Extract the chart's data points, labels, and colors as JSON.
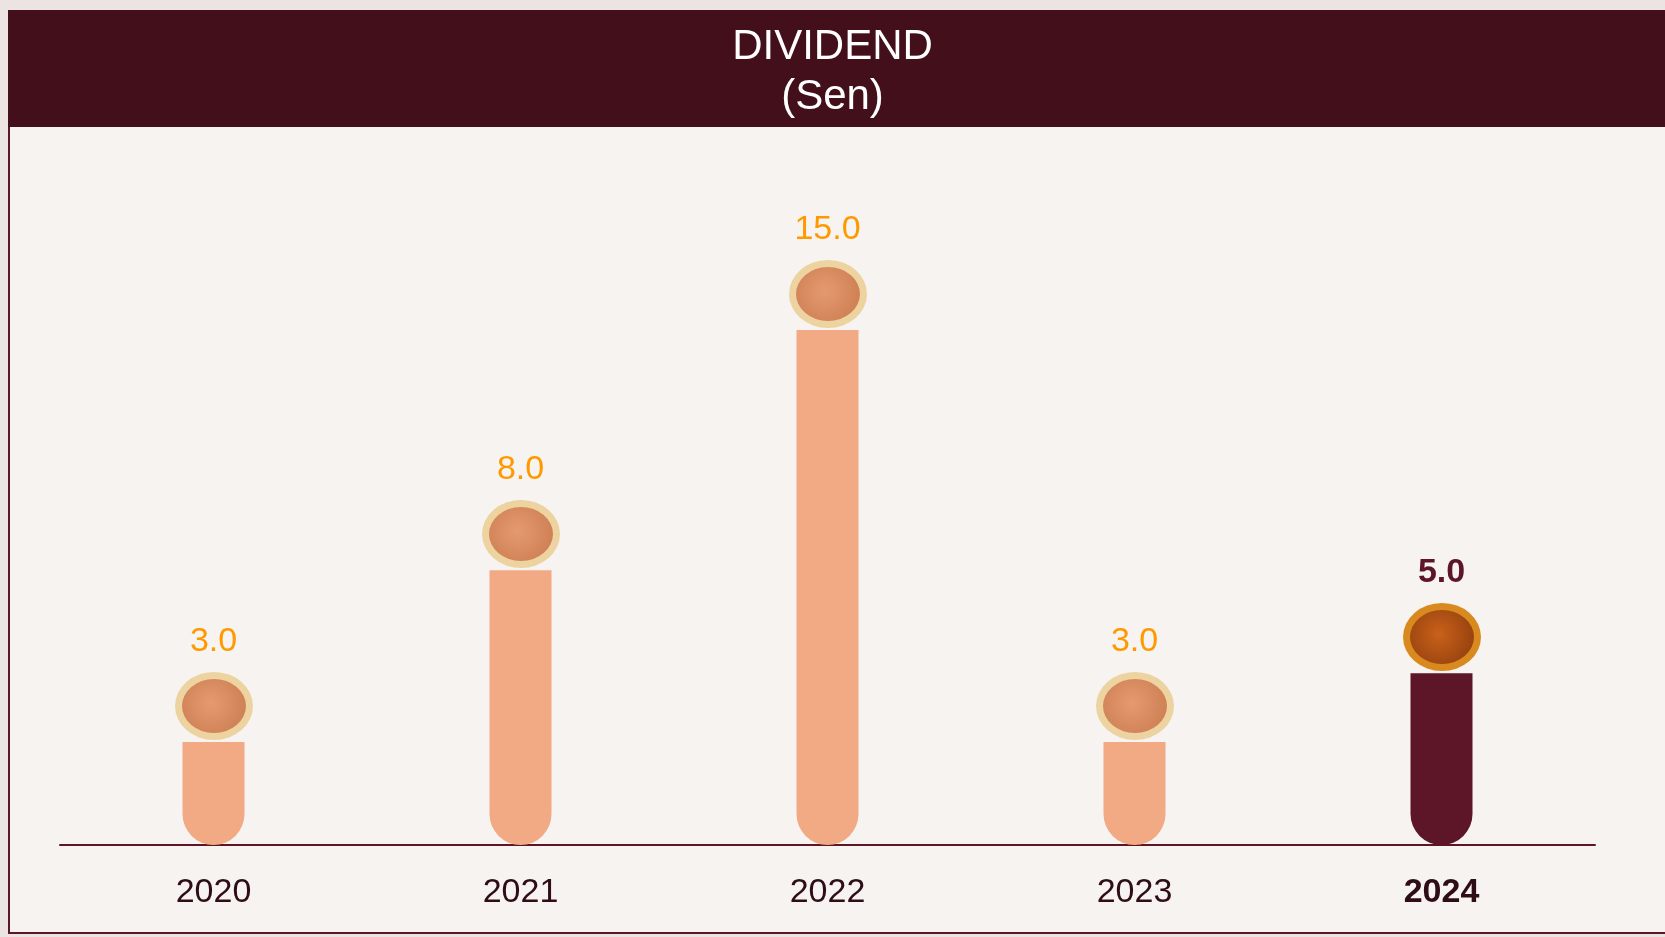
{
  "chart_data": {
    "type": "bar",
    "title": "DIVIDEND",
    "subtitle": "(Sen)",
    "categories": [
      "2020",
      "2021",
      "2022",
      "2023",
      "2024"
    ],
    "values": [
      3.0,
      8.0,
      15.0,
      3.0,
      5.0
    ],
    "colors": [
      "#f2aa85",
      "#f2aa85",
      "#f2aa85",
      "#f2aa85",
      "#5c1628"
    ],
    "value_labels": [
      "3.0",
      "8.0",
      "15.0",
      "3.0",
      "5.0"
    ]
  }
}
